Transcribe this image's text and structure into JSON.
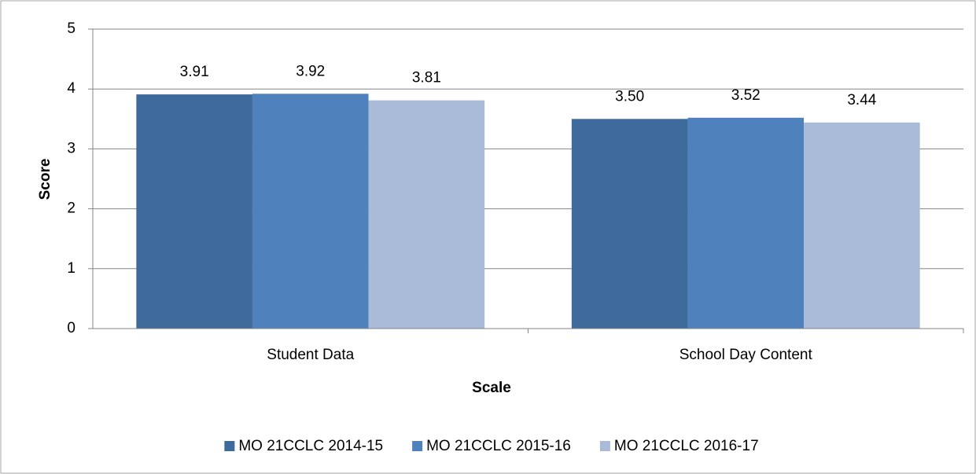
{
  "chart_data": {
    "type": "bar",
    "x_label": "Scale",
    "y_label": "Score",
    "categories": [
      "Student Data",
      "School Day Content"
    ],
    "series": [
      {
        "name": "MO 21CCLC 2014-15",
        "color": "#3f6a9c",
        "values": [
          3.91,
          3.5
        ],
        "value_labels": [
          "3.91",
          "3.50"
        ]
      },
      {
        "name": "MO 21CCLC 2015-16",
        "color": "#4f81bd",
        "values": [
          3.92,
          3.52
        ],
        "value_labels": [
          "3.92",
          "3.52"
        ]
      },
      {
        "name": "MO 21CCLC 2016-17",
        "color": "#aabad9",
        "values": [
          3.81,
          3.44
        ],
        "value_labels": [
          "3.81",
          "3.44"
        ]
      }
    ],
    "ylim": [
      0,
      5
    ],
    "yticks": [
      0,
      1,
      2,
      3,
      4,
      5
    ],
    "grid": true,
    "legend": "bottom"
  }
}
